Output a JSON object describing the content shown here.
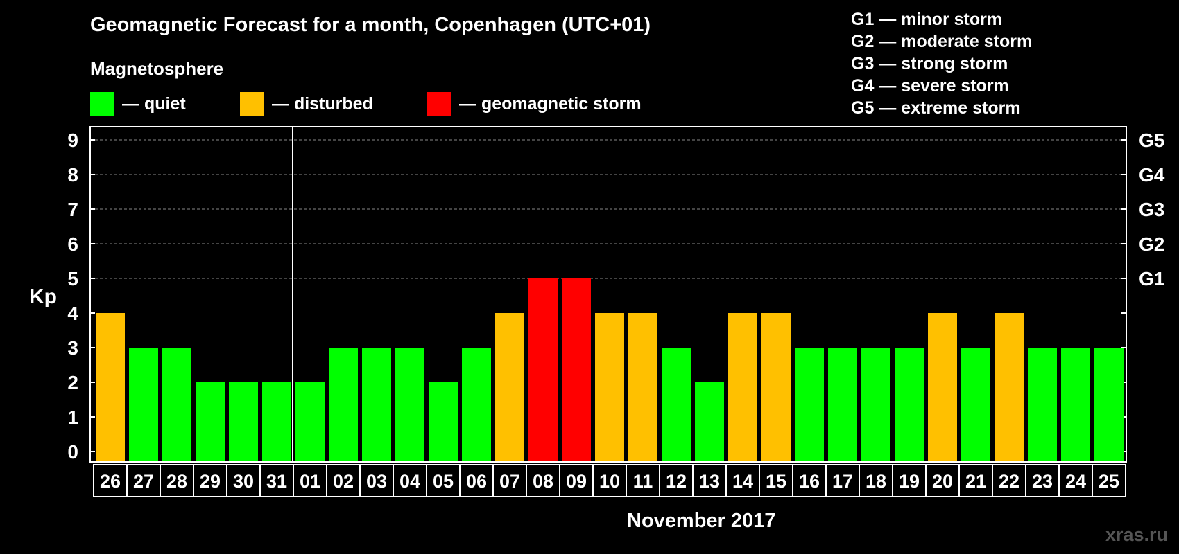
{
  "title": "Geomagnetic Forecast for a month, Copenhagen (UTC+01)",
  "legend": {
    "heading": "Magnetosphere",
    "items": [
      {
        "label": "— quiet",
        "color": "#00ff00"
      },
      {
        "label": "— disturbed",
        "color": "#ffc000"
      },
      {
        "label": "— geomagnetic storm",
        "color": "#ff0000"
      }
    ]
  },
  "g_scale": [
    "G1 — minor storm",
    "G2 — moderate storm",
    "G3 — strong storm",
    "G4 — severe storm",
    "G5 — extreme storm"
  ],
  "watermark": "xras.ru",
  "chart_data": {
    "type": "bar",
    "ylabel": "Kp",
    "xlabel": "November 2017",
    "ylim": [
      0,
      9
    ],
    "yticks": [
      0,
      1,
      2,
      3,
      4,
      5,
      6,
      7,
      8,
      9
    ],
    "right_labels": [
      {
        "kp": 5,
        "label": "G1"
      },
      {
        "kp": 6,
        "label": "G2"
      },
      {
        "kp": 7,
        "label": "G3"
      },
      {
        "kp": 8,
        "label": "G4"
      },
      {
        "kp": 9,
        "label": "G5"
      }
    ],
    "categories": [
      "26",
      "27",
      "28",
      "29",
      "30",
      "31",
      "01",
      "02",
      "03",
      "04",
      "05",
      "06",
      "07",
      "08",
      "09",
      "10",
      "11",
      "12",
      "13",
      "14",
      "15",
      "16",
      "17",
      "18",
      "19",
      "20",
      "21",
      "22",
      "23",
      "24",
      "25"
    ],
    "values": [
      4,
      3,
      3,
      2,
      2,
      2,
      2,
      3,
      3,
      3,
      2,
      3,
      4,
      5,
      5,
      4,
      4,
      3,
      2,
      4,
      4,
      3,
      3,
      3,
      3,
      4,
      3,
      4,
      3,
      3,
      3
    ],
    "month_separator_after": "31",
    "color_scale": {
      "quiet_max": 3,
      "disturbed": 4,
      "storm_min": 5
    }
  }
}
